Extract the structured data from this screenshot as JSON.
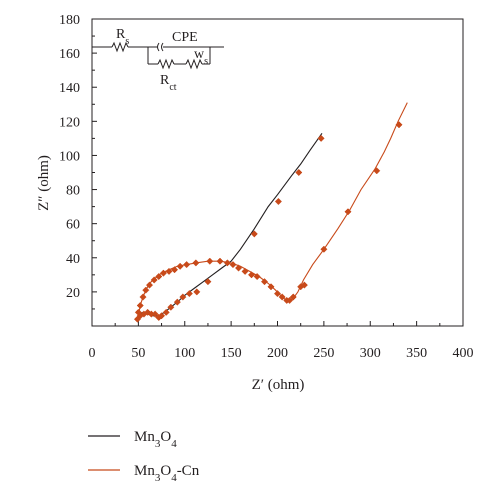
{
  "chart_data": {
    "type": "scatter",
    "xlabel": "Z′ (ohm)",
    "ylabel": "Z″ (ohm)",
    "xlim": [
      0,
      400
    ],
    "ylim": [
      0,
      180
    ],
    "x_ticks": [
      "0",
      "50",
      "100",
      "150",
      "200",
      "250",
      "300",
      "350",
      "400"
    ],
    "y_ticks": [
      "20",
      "40",
      "60",
      "80",
      "100",
      "120",
      "140",
      "160",
      "180"
    ],
    "grid": false,
    "legend_position": "below",
    "series": [
      {
        "name": "Mn3O4",
        "color": "#231f20",
        "marker_color": "#c84a1a",
        "curve": [
          [
            49,
            3
          ],
          [
            51,
            7
          ],
          [
            55,
            8
          ],
          [
            60,
            7
          ],
          [
            66,
            6
          ],
          [
            72,
            6
          ],
          [
            78,
            8
          ],
          [
            85,
            11
          ],
          [
            92,
            14
          ],
          [
            100,
            18
          ],
          [
            110,
            22
          ],
          [
            120,
            26
          ],
          [
            130,
            30
          ],
          [
            140,
            34
          ],
          [
            150,
            38
          ],
          [
            160,
            45
          ],
          [
            175,
            57
          ],
          [
            190,
            70
          ],
          [
            200,
            77
          ],
          [
            215,
            88
          ],
          [
            225,
            95
          ],
          [
            235,
            103
          ],
          [
            248,
            113
          ]
        ],
        "markers": [
          [
            49,
            4
          ],
          [
            52,
            6
          ],
          [
            56,
            7
          ],
          [
            60,
            8
          ],
          [
            64,
            7
          ],
          [
            68,
            7
          ],
          [
            72,
            5
          ],
          [
            75,
            6
          ],
          [
            80,
            8
          ],
          [
            85,
            11
          ],
          [
            92,
            14
          ],
          [
            98,
            17
          ],
          [
            105,
            19
          ],
          [
            113,
            20
          ],
          [
            125,
            26
          ],
          [
            175,
            54
          ],
          [
            201,
            73
          ],
          [
            223,
            90
          ],
          [
            247,
            110
          ]
        ]
      },
      {
        "name": "Mn3O4-Cn",
        "color": "#c84a1a",
        "marker_color": "#c84a1a",
        "curve": [
          [
            49,
            3
          ],
          [
            50,
            6
          ],
          [
            52,
            12
          ],
          [
            55,
            17
          ],
          [
            58,
            21
          ],
          [
            62,
            25
          ],
          [
            68,
            28
          ],
          [
            75,
            31
          ],
          [
            83,
            33
          ],
          [
            92,
            35
          ],
          [
            102,
            36
          ],
          [
            112,
            37
          ],
          [
            125,
            38
          ],
          [
            138,
            38
          ],
          [
            150,
            37
          ],
          [
            160,
            35
          ],
          [
            170,
            32
          ],
          [
            180,
            29
          ],
          [
            190,
            25
          ],
          [
            198,
            21
          ],
          [
            205,
            17
          ],
          [
            210,
            15
          ],
          [
            214,
            15
          ],
          [
            218,
            17
          ],
          [
            222,
            20
          ],
          [
            228,
            27
          ],
          [
            238,
            36
          ],
          [
            250,
            45
          ],
          [
            265,
            57
          ],
          [
            278,
            68
          ],
          [
            290,
            80
          ],
          [
            305,
            92
          ],
          [
            315,
            102
          ],
          [
            322,
            110
          ],
          [
            330,
            120
          ],
          [
            340,
            131
          ]
        ],
        "markers": [
          [
            50,
            8
          ],
          [
            52,
            12
          ],
          [
            55,
            17
          ],
          [
            58,
            21
          ],
          [
            62,
            24
          ],
          [
            67,
            27
          ],
          [
            72,
            29
          ],
          [
            77,
            31
          ],
          [
            83,
            32
          ],
          [
            89,
            33
          ],
          [
            95,
            35
          ],
          [
            102,
            36
          ],
          [
            112,
            37
          ],
          [
            127,
            38
          ],
          [
            138,
            38
          ],
          [
            146,
            37
          ],
          [
            152,
            36
          ],
          [
            158,
            34
          ],
          [
            165,
            32
          ],
          [
            172,
            30
          ],
          [
            178,
            29
          ],
          [
            186,
            26
          ],
          [
            193,
            23
          ],
          [
            200,
            19
          ],
          [
            205,
            17
          ],
          [
            210,
            15
          ],
          [
            213,
            15
          ],
          [
            217,
            17
          ],
          [
            225,
            23
          ],
          [
            229,
            24
          ],
          [
            250,
            45
          ],
          [
            276,
            67
          ],
          [
            307,
            91
          ],
          [
            331,
            118
          ]
        ]
      }
    ]
  },
  "circuit": {
    "rs_label": "R",
    "rs_sub": "s",
    "cpe_label": "CPE",
    "w_label": "w",
    "w_sub": "s",
    "rct_label": "R",
    "rct_sub": "ct"
  },
  "legend": {
    "items": [
      {
        "label_main": "Mn",
        "sub1": "3",
        "mid": "O",
        "sub2": "4",
        "suffix": "",
        "color": "#231f20"
      },
      {
        "label_main": "Mn",
        "sub1": "3",
        "mid": "O",
        "sub2": "4",
        "suffix": "-Cn",
        "color": "#c84a1a"
      }
    ]
  }
}
